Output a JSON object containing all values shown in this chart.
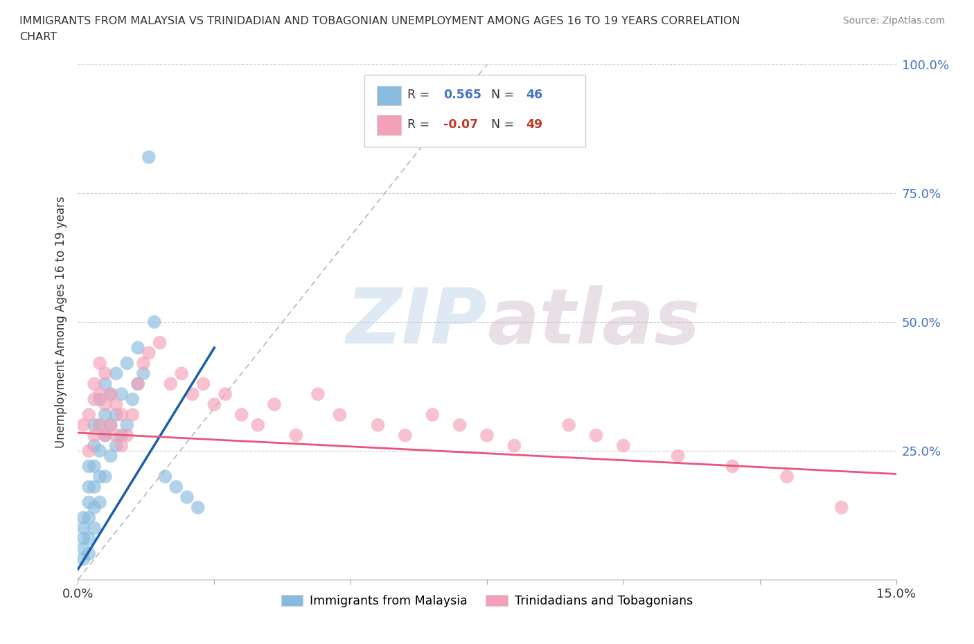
{
  "title_line1": "IMMIGRANTS FROM MALAYSIA VS TRINIDADIAN AND TOBAGONIAN UNEMPLOYMENT AMONG AGES 16 TO 19 YEARS CORRELATION",
  "title_line2": "CHART",
  "source": "Source: ZipAtlas.com",
  "ylabel": "Unemployment Among Ages 16 to 19 years",
  "xlim": [
    0.0,
    0.15
  ],
  "ylim": [
    0.0,
    1.0
  ],
  "blue_color": "#88bbdd",
  "pink_color": "#f4a0b8",
  "blue_line_color": "#1a5fa8",
  "pink_line_color": "#e8547a",
  "R_blue": 0.565,
  "N_blue": 46,
  "R_pink": -0.07,
  "N_pink": 49,
  "legend_label_blue": "Immigrants from Malaysia",
  "legend_label_pink": "Trinidadians and Tobagonians",
  "watermark_zip": "ZIP",
  "watermark_atlas": "atlas",
  "blue_scatter_x": [
    0.001,
    0.001,
    0.001,
    0.001,
    0.001,
    0.002,
    0.002,
    0.002,
    0.002,
    0.002,
    0.002,
    0.003,
    0.003,
    0.003,
    0.003,
    0.003,
    0.003,
    0.004,
    0.004,
    0.004,
    0.004,
    0.004,
    0.005,
    0.005,
    0.005,
    0.005,
    0.006,
    0.006,
    0.006,
    0.007,
    0.007,
    0.007,
    0.008,
    0.008,
    0.009,
    0.009,
    0.01,
    0.011,
    0.011,
    0.012,
    0.013,
    0.014,
    0.016,
    0.018,
    0.02,
    0.022
  ],
  "blue_scatter_y": [
    0.04,
    0.06,
    0.08,
    0.1,
    0.12,
    0.05,
    0.08,
    0.12,
    0.15,
    0.18,
    0.22,
    0.1,
    0.14,
    0.18,
    0.22,
    0.26,
    0.3,
    0.15,
    0.2,
    0.25,
    0.3,
    0.35,
    0.2,
    0.28,
    0.32,
    0.38,
    0.24,
    0.3,
    0.36,
    0.26,
    0.32,
    0.4,
    0.28,
    0.36,
    0.3,
    0.42,
    0.35,
    0.38,
    0.45,
    0.4,
    0.82,
    0.5,
    0.2,
    0.18,
    0.16,
    0.14
  ],
  "pink_scatter_x": [
    0.001,
    0.002,
    0.002,
    0.003,
    0.003,
    0.003,
    0.004,
    0.004,
    0.004,
    0.005,
    0.005,
    0.005,
    0.006,
    0.006,
    0.007,
    0.007,
    0.008,
    0.008,
    0.009,
    0.01,
    0.011,
    0.012,
    0.013,
    0.015,
    0.017,
    0.019,
    0.021,
    0.023,
    0.025,
    0.027,
    0.03,
    0.033,
    0.036,
    0.04,
    0.044,
    0.048,
    0.055,
    0.06,
    0.065,
    0.07,
    0.075,
    0.08,
    0.09,
    0.095,
    0.1,
    0.11,
    0.12,
    0.13,
    0.14
  ],
  "pink_scatter_y": [
    0.3,
    0.25,
    0.32,
    0.28,
    0.35,
    0.38,
    0.3,
    0.36,
    0.42,
    0.28,
    0.34,
    0.4,
    0.3,
    0.36,
    0.28,
    0.34,
    0.26,
    0.32,
    0.28,
    0.32,
    0.38,
    0.42,
    0.44,
    0.46,
    0.38,
    0.4,
    0.36,
    0.38,
    0.34,
    0.36,
    0.32,
    0.3,
    0.34,
    0.28,
    0.36,
    0.32,
    0.3,
    0.28,
    0.32,
    0.3,
    0.28,
    0.26,
    0.3,
    0.28,
    0.26,
    0.24,
    0.22,
    0.2,
    0.14
  ],
  "blue_line_x": [
    0.0,
    0.025
  ],
  "blue_line_y": [
    0.02,
    0.45
  ],
  "pink_line_x": [
    0.0,
    0.15
  ],
  "pink_line_y": [
    0.285,
    0.205
  ],
  "ref_line_x": [
    0.0,
    0.075
  ],
  "ref_line_y": [
    0.0,
    1.0
  ]
}
